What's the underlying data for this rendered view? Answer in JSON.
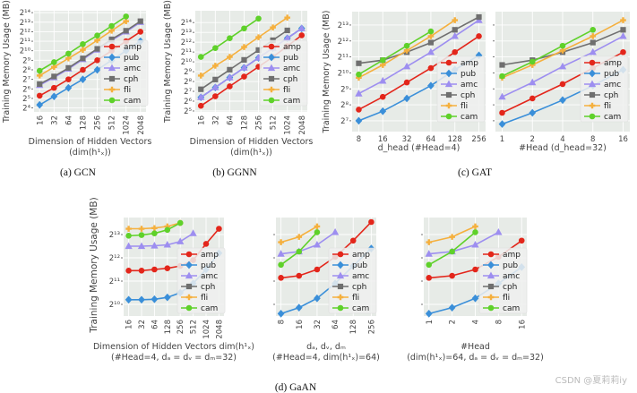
{
  "captions": [
    "(a) GCN",
    "(b) GGNN",
    "(c) GAT",
    "(d) GaAN"
  ],
  "shared_ylabel": "Training Memory Usage (MB)",
  "watermark": "CSDN @夏莉莉iy",
  "series_style": {
    "amp": {
      "color": "#e3261b",
      "marker": "circle"
    },
    "pub": {
      "color": "#3a8fd9",
      "marker": "diamond"
    },
    "amc": {
      "color": "#9d8ef0",
      "marker": "triangle"
    },
    "cph": {
      "color": "#6f6f6f",
      "marker": "square"
    },
    "fli": {
      "color": "#f5b03e",
      "marker": "plus"
    },
    "cam": {
      "color": "#5fd12a",
      "marker": "circle"
    }
  },
  "chart_data": [
    {
      "type": "line",
      "panel": "(a) GCN",
      "y_scale": "log2",
      "grid": true,
      "legend": "right",
      "ylabel": "Training Memory Usage (MB)",
      "xlabel": "Dimension of Hidden Vectors",
      "xlabel2": "(dim(h¹ₓ))",
      "x": [
        "16",
        "32",
        "64",
        "128",
        "256",
        "512",
        "1024",
        "2048"
      ],
      "ylim": [
        12,
        18800
      ],
      "yticks": [
        "2⁴",
        "2⁵",
        "2⁶",
        "2⁷",
        "2⁸",
        "2⁹",
        "2¹⁰",
        "2¹¹",
        "2¹²",
        "2¹³",
        "2¹⁴"
      ],
      "series": [
        {
          "name": "amp",
          "values": [
            39,
            69,
            128,
            256,
            512,
            1024,
            2048,
            4096
          ]
        },
        {
          "name": "pub",
          "values": [
            20,
            37,
            69,
            128,
            256,
            512,
            1024,
            2048
          ]
        },
        {
          "name": "amc",
          "values": [
            84,
            147,
            274,
            549,
            1097,
            2195,
            4096,
            8192
          ]
        },
        {
          "name": "cph",
          "values": [
            91,
            158,
            294,
            588,
            1176,
            2353,
            4389,
            8780
          ]
        },
        {
          "name": "fli",
          "values": [
            169,
            315,
            588,
            1097,
            2195,
            4389,
            8780,
            null
          ]
        },
        {
          "name": "cam",
          "values": [
            239,
            446,
            832,
            1663,
            3104,
            6208,
            12417,
            null
          ]
        }
      ]
    },
    {
      "type": "line",
      "panel": "(b) GGNN",
      "y_scale": "log2",
      "grid": true,
      "legend": "right",
      "ylabel": "Training Memory Usage (MB)",
      "xlabel": "Dimension of Hidden Vectors",
      "xlabel2": "(dim(h¹ₓ))",
      "x": [
        "16",
        "32",
        "64",
        "128",
        "256",
        "512",
        "1024",
        "2048"
      ],
      "ylim": [
        15,
        18800
      ],
      "yticks": [
        "2⁵",
        "2⁶",
        "2⁷",
        "2⁸",
        "2⁹",
        "2¹⁰",
        "2¹¹",
        "2¹²",
        "2¹³",
        "2¹⁴"
      ],
      "series": [
        {
          "name": "amp",
          "values": [
            23,
            45,
            91,
            181,
            362,
            724,
            1552,
            3327
          ]
        },
        {
          "name": "pub",
          "values": [
            42,
            84,
            169,
            338,
            676,
            1351,
            2702,
            5405
          ]
        },
        {
          "name": "amc",
          "values": [
            42,
            84,
            169,
            338,
            676,
            1351,
            2702,
            5405
          ]
        },
        {
          "name": "cph",
          "values": [
            74,
            147,
            294,
            588,
            1176,
            2353,
            4705,
            null
          ]
        },
        {
          "name": "fli",
          "values": [
            194,
            388,
            724,
            1448,
            2896,
            5793,
            11585,
            null
          ]
        },
        {
          "name": "cam",
          "values": [
            724,
            1351,
            2702,
            5405,
            10809,
            null,
            null,
            null
          ]
        }
      ]
    },
    {
      "type": "line",
      "panel": "(c) GAT",
      "y_scale": "log2",
      "grid": true,
      "legend": "lower-right",
      "ylabel": "Training Memory Usage (MB)",
      "xlabel": "d_head (#Head=4)",
      "xlabel2": "",
      "x": [
        "8",
        "16",
        "32",
        "64",
        "128",
        "256"
      ],
      "ylim": [
        80,
        14650
      ],
      "yticks": [
        "2⁷",
        "2⁸",
        "2⁹",
        "2¹⁰",
        "2¹¹",
        "2¹²",
        "2¹³"
      ],
      "series": [
        {
          "name": "amp",
          "values": [
            208,
            362,
            676,
            1261,
            2521,
            5042
          ]
        },
        {
          "name": "pub",
          "values": [
            128,
            194,
            338,
            588,
            1176,
            2195
          ]
        },
        {
          "name": "amc",
          "values": [
            416,
            724,
            1351,
            2521,
            5042,
            10086
          ]
        },
        {
          "name": "cph",
          "values": [
            1552,
            1783,
            2521,
            3822,
            6654,
            11585
          ]
        },
        {
          "name": "fli",
          "values": [
            832,
            1448,
            2702,
            5042,
            10086,
            null
          ]
        },
        {
          "name": "cam",
          "values": [
            955,
            1783,
            3327,
            6208,
            null,
            null
          ]
        }
      ]
    },
    {
      "type": "line",
      "panel": "(c) GAT",
      "y_scale": "log2",
      "grid": true,
      "legend": "lower-right",
      "ylabel": "",
      "xlabel": "#Head (d_head=32)",
      "xlabel2": "",
      "x": [
        "1",
        "2",
        "4",
        "8",
        "16"
      ],
      "ylim": [
        80,
        14650
      ],
      "yticks": [
        "",
        "",
        "",
        "",
        "",
        "",
        ""
      ],
      "series": [
        {
          "name": "amp",
          "values": [
            181,
            338,
            630,
            1261,
            2521
          ]
        },
        {
          "name": "pub",
          "values": [
            111,
            181,
            315,
            588,
            1176
          ]
        },
        {
          "name": "amc",
          "values": [
            362,
            676,
            1351,
            2521,
            5042
          ]
        },
        {
          "name": "cph",
          "values": [
            1448,
            1783,
            2521,
            3822,
            6654
          ]
        },
        {
          "name": "fli",
          "values": [
            832,
            1448,
            2702,
            5042,
            10086
          ]
        },
        {
          "name": "cam",
          "values": [
            891,
            1663,
            3327,
            6654,
            null
          ]
        }
      ]
    },
    {
      "type": "line",
      "panel": "(d) GaAN",
      "y_scale": "log2",
      "grid": true,
      "legend": "lower-right",
      "ylabel": "",
      "xlabel": "Dimension of Hidden Vectors dim(h¹ₓ)",
      "xlabel2": "(#Head=4, dₐ = dᵥ = dₘ=32)",
      "x": [
        "16",
        "32",
        "64",
        "128",
        "256",
        "512",
        "1024",
        "2048"
      ],
      "ylim": [
        724,
        13600
      ],
      "yticks": [
        "2¹⁰",
        "2¹¹",
        "2¹²",
        "2¹³"
      ],
      "series": [
        {
          "name": "amp",
          "values": [
            2796,
            2796,
            2896,
            2998,
            3214,
            3822,
            6208,
            9741
          ]
        },
        {
          "name": "pub",
          "values": [
            1176,
            1176,
            1193,
            1261,
            1448,
            1911,
            2896,
            4705
          ]
        },
        {
          "name": "amc",
          "values": [
            5793,
            5793,
            5874,
            6037,
            6654,
            8481,
            null,
            null
          ]
        },
        {
          "name": "cph",
          "values": [
            null,
            null,
            null,
            null,
            null,
            null,
            null,
            null
          ]
        },
        {
          "name": "fli",
          "values": [
            9741,
            9741,
            9945,
            10434,
            11585,
            null,
            null,
            null
          ]
        },
        {
          "name": "cam",
          "values": [
            7913,
            8078,
            8481,
            9410,
            11585,
            null,
            null,
            null
          ]
        }
      ]
    },
    {
      "type": "line",
      "panel": "(d) GaAN",
      "y_scale": "log2",
      "grid": true,
      "legend": "lower-right",
      "ylabel": "",
      "xlabel": "dₐ, dᵥ, dₘ",
      "xlabel2": "(#Head=4, dim(h¹ₓ)=64)",
      "x": [
        "8",
        "16",
        "32",
        "64",
        "128",
        "256"
      ],
      "ylim": [
        724,
        13600
      ],
      "yticks": [
        "",
        "",
        "",
        ""
      ],
      "series": [
        {
          "name": "amp",
          "values": [
            2257,
            2402,
            2896,
            4211,
            6841,
            11906
          ]
        },
        {
          "name": "pub",
          "values": [
            776,
            929,
            1226,
            1911,
            3214,
            5405
          ]
        },
        {
          "name": "amc",
          "values": [
            4608,
            4938,
            6037,
            8780,
            null,
            null
          ]
        },
        {
          "name": "cph",
          "values": [
            null,
            null,
            null,
            null,
            null,
            null
          ]
        },
        {
          "name": "fli",
          "values": [
            6517,
            7643,
            10434,
            null,
            null,
            null
          ]
        },
        {
          "name": "cam",
          "values": [
            3327,
            4938,
            8780,
            null,
            null,
            null
          ]
        }
      ]
    },
    {
      "type": "line",
      "panel": "(d) GaAN",
      "y_scale": "log2",
      "grid": true,
      "legend": "lower-right",
      "ylabel": "",
      "xlabel": "#Head",
      "xlabel2": "(dim(h¹ₓ)=64, dₐ = dᵥ = dₘ=32)",
      "x": [
        "1",
        "2",
        "4",
        "8",
        "16"
      ],
      "ylim": [
        724,
        13600
      ],
      "yticks": [
        "",
        "",
        "",
        ""
      ],
      "series": [
        {
          "name": "amp",
          "values": [
            2257,
            2402,
            2896,
            4211,
            6841
          ]
        },
        {
          "name": "pub",
          "values": [
            776,
            929,
            1226,
            1911,
            3104
          ]
        },
        {
          "name": "amc",
          "values": [
            4608,
            4938,
            6037,
            8780,
            null
          ]
        },
        {
          "name": "cph",
          "values": [
            null,
            null,
            null,
            null,
            null
          ]
        },
        {
          "name": "fli",
          "values": [
            6517,
            7643,
            10434,
            null,
            null
          ]
        },
        {
          "name": "cam",
          "values": [
            3327,
            4938,
            8780,
            null,
            null
          ]
        }
      ]
    }
  ]
}
